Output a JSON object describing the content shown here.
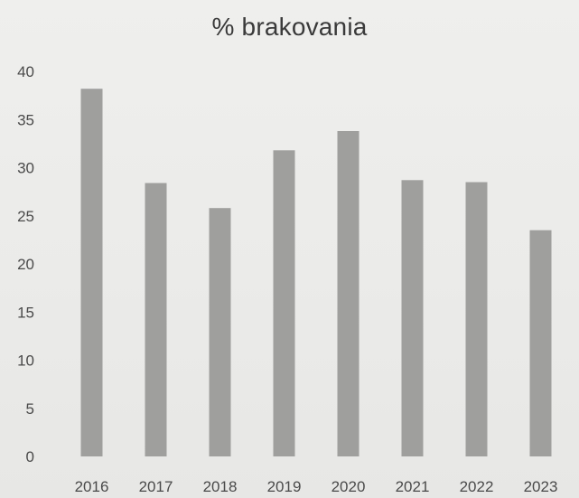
{
  "chart_data": {
    "type": "bar",
    "title": "% brakovania",
    "xlabel": "",
    "ylabel": "",
    "categories": [
      "2016",
      "2017",
      "2018",
      "2019",
      "2020",
      "2021",
      "2022",
      "2023"
    ],
    "values": [
      38.2,
      28.4,
      25.8,
      31.8,
      33.8,
      28.7,
      28.5,
      23.5
    ],
    "ylim": [
      0,
      40
    ],
    "yticks": [
      "0",
      "5",
      "10",
      "15",
      "20",
      "25",
      "30",
      "35",
      "40"
    ],
    "grid": false,
    "legend": "none",
    "bar_color": "#9f9f9d"
  }
}
